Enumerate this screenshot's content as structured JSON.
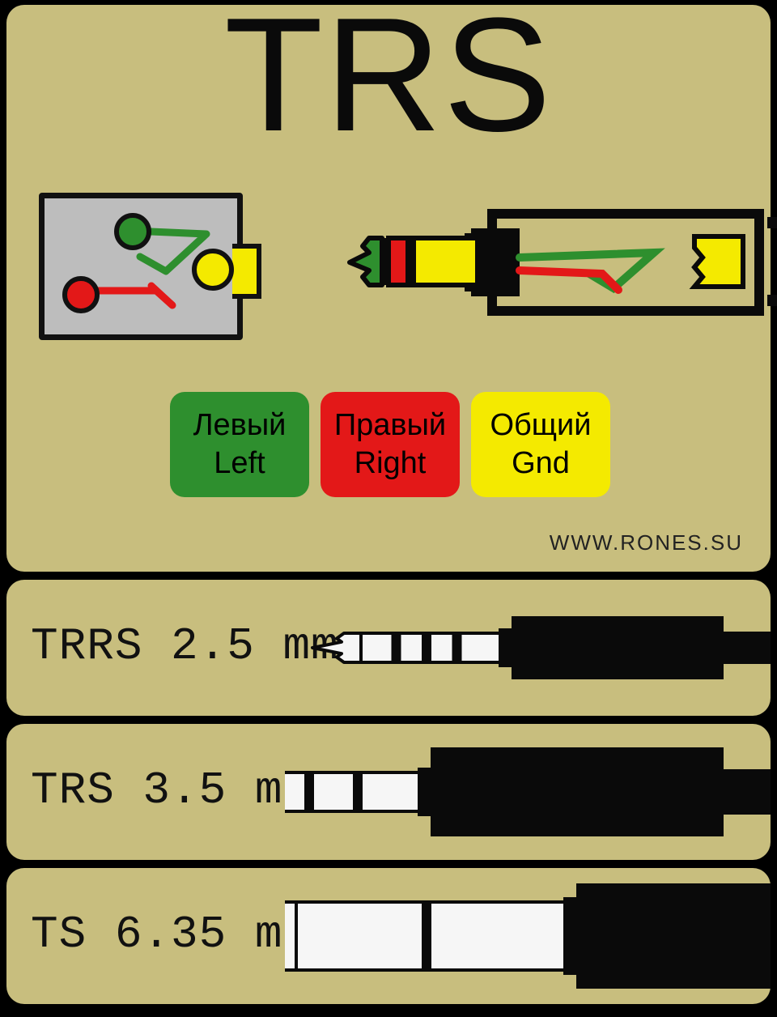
{
  "title": "TRS",
  "url": "WWW.RONES.SU",
  "colors": {
    "bg": "#c8be7e",
    "green": "#2e8f2e",
    "red": "#e31818",
    "yellow": "#f4ea00",
    "black": "#0a0a0a",
    "grey": "#bdbdbd",
    "white": "#f6f6f6"
  },
  "legend": [
    {
      "color": "#2e8f2e",
      "line1": "Левый",
      "line2": "Left"
    },
    {
      "color": "#e31818",
      "line1": "Правый",
      "line2": "Right"
    },
    {
      "color": "#f4ea00",
      "line1": "Общий",
      "line2": "Gnd"
    }
  ],
  "rows": [
    {
      "label": "TRRS 2.5 mm",
      "rings": 3,
      "tip_w": 60,
      "shaft_w": 170,
      "shaft_h": 36,
      "body_w": 260,
      "body_h": 78,
      "cable_h": 40
    },
    {
      "label": "TRS 3.5 mm",
      "rings": 2,
      "tip_w": 74,
      "shaft_w": 200,
      "shaft_h": 48,
      "body_w": 360,
      "body_h": 110,
      "cable_h": 56
    },
    {
      "label": "TS 6.35 mm",
      "rings": 1,
      "tip_w": 110,
      "shaft_w": 330,
      "shaft_h": 84,
      "body_w": 240,
      "body_h": 130,
      "cable_h": 0
    }
  ],
  "schematic": {
    "box_bg": "#bdbdbd",
    "dots": [
      {
        "color": "#2e8f2e"
      },
      {
        "color": "#e31818"
      },
      {
        "color": "#f4ea00"
      }
    ]
  },
  "top_jack": {
    "tip_color": "#2e8f2e",
    "ring_color": "#e31818",
    "sleeve_color": "#f4ea00",
    "body_color": "#0a0a0a"
  }
}
